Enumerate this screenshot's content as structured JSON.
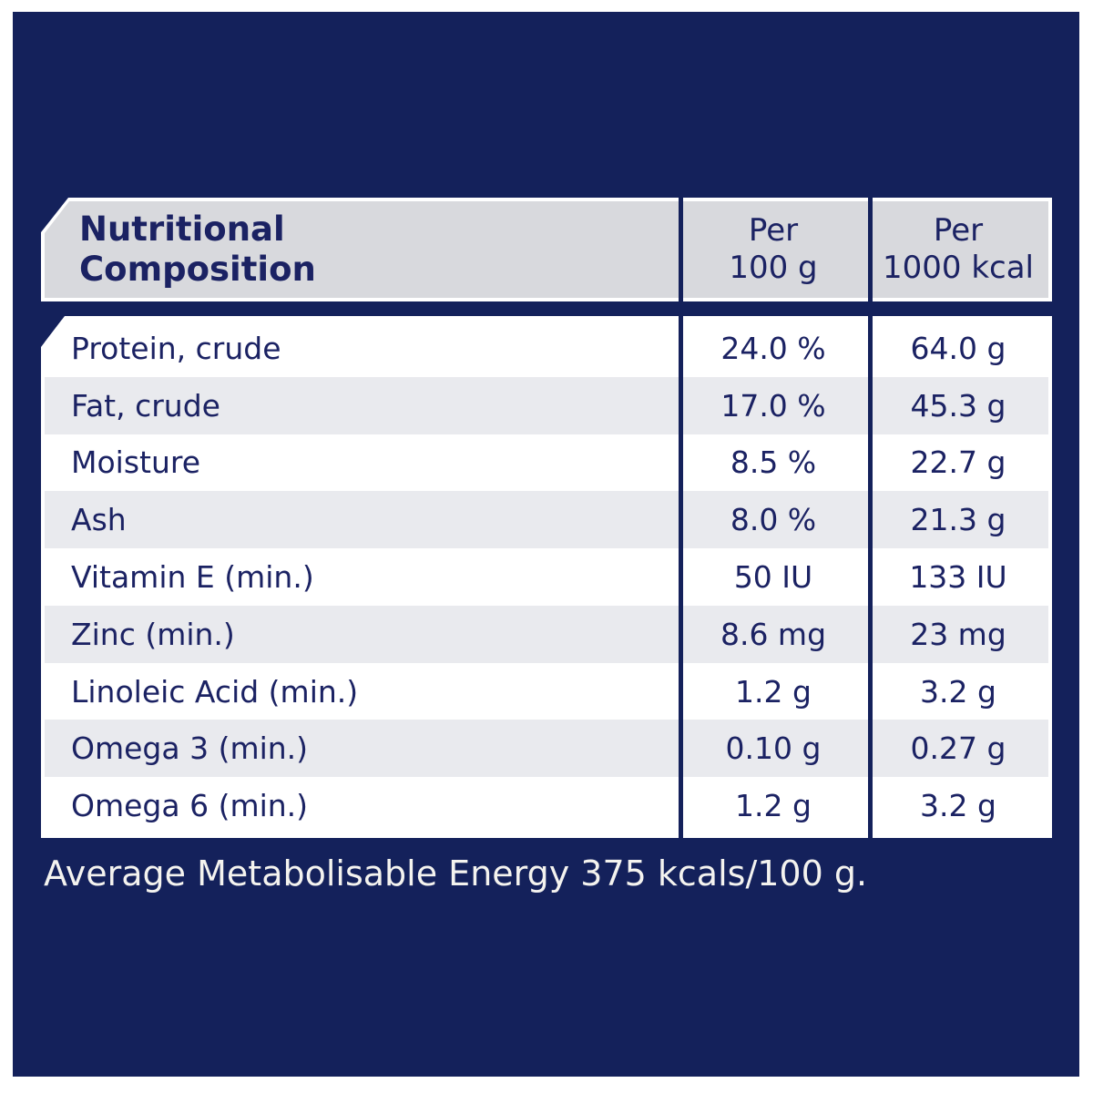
{
  "colors": {
    "panel_navy": "#14215b",
    "text_navy": "#1b2263",
    "header_gray": "#d8d9dd",
    "row_alt_gray": "#e9eaee",
    "row_white": "#ffffff",
    "footer_text": "#f4f3ef",
    "page_border_white": "#ffffff"
  },
  "table": {
    "title_line1": "Nutritional",
    "title_line2": "Composition",
    "columns": [
      {
        "line1": "Per",
        "line2": "100 g"
      },
      {
        "line1": "Per",
        "line2": "1000 kcal"
      }
    ],
    "rows": [
      {
        "label": "Protein, crude",
        "per_100g": "24.0 %",
        "per_1000kcal": "64.0 g"
      },
      {
        "label": "Fat, crude",
        "per_100g": "17.0 %",
        "per_1000kcal": "45.3 g"
      },
      {
        "label": "Moisture",
        "per_100g": "8.5 %",
        "per_1000kcal": "22.7 g"
      },
      {
        "label": "Ash",
        "per_100g": "8.0 %",
        "per_1000kcal": "21.3 g"
      },
      {
        "label": "Vitamin E (min.)",
        "per_100g": "50 IU",
        "per_1000kcal": "133 IU"
      },
      {
        "label": "Zinc (min.)",
        "per_100g": "8.6 mg",
        "per_1000kcal": "23 mg"
      },
      {
        "label": "Linoleic Acid (min.)",
        "per_100g": "1.2 g",
        "per_1000kcal": "3.2 g"
      },
      {
        "label": "Omega 3 (min.)",
        "per_100g": "0.10 g",
        "per_1000kcal": "0.27 g"
      },
      {
        "label": "Omega 6 (min.)",
        "per_100g": "1.2 g",
        "per_1000kcal": "3.2 g"
      }
    ]
  },
  "footer": {
    "text": "Average Metabolisable Energy 375 kcals/100 g."
  }
}
